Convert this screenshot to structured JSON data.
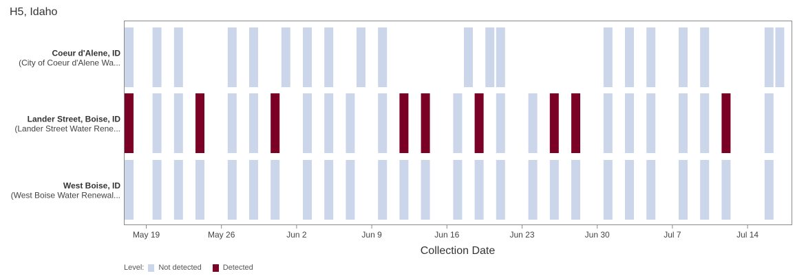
{
  "chart_data": {
    "type": "heatmap",
    "title": "H5, Idaho",
    "xlabel": "Collection Date",
    "x_ticks": [
      "May 19",
      "May 26",
      "Jun 2",
      "Jun 9",
      "Jun 16",
      "Jun 23",
      "Jun 30",
      "Jul 7",
      "Jul 14"
    ],
    "x_tick_days": [
      0,
      7,
      14,
      21,
      28,
      35,
      42,
      49,
      56
    ],
    "legend": {
      "label": "Level:",
      "items": [
        {
          "name": "Not detected",
          "color": "#cbd6ea"
        },
        {
          "name": "Detected",
          "color": "#7a0025"
        }
      ]
    },
    "sites": [
      {
        "name": "Coeur d'Alene, ID",
        "subtitle": "(City of Coeur d'Alene Wa...",
        "samples": [
          {
            "day": -2,
            "level": "Not detected"
          },
          {
            "day": 1,
            "level": "Not detected"
          },
          {
            "day": 3,
            "level": "Not detected"
          },
          {
            "day": 8,
            "level": "Not detected"
          },
          {
            "day": 10,
            "level": "Not detected"
          },
          {
            "day": 13,
            "level": "Not detected"
          },
          {
            "day": 15,
            "level": "Not detected"
          },
          {
            "day": 17,
            "level": "Not detected"
          },
          {
            "day": 20,
            "level": "Not detected"
          },
          {
            "day": 22,
            "level": "Not detected"
          },
          {
            "day": 30,
            "level": "Not detected"
          },
          {
            "day": 32,
            "level": "Not detected"
          },
          {
            "day": 33,
            "level": "Not detected"
          },
          {
            "day": 43,
            "level": "Not detected"
          },
          {
            "day": 45,
            "level": "Not detected"
          },
          {
            "day": 47,
            "level": "Not detected"
          },
          {
            "day": 50,
            "level": "Not detected"
          },
          {
            "day": 52,
            "level": "Not detected"
          },
          {
            "day": 58,
            "level": "Not detected"
          },
          {
            "day": 59,
            "level": "Not detected"
          }
        ]
      },
      {
        "name": "Lander Street, Boise, ID",
        "subtitle": "(Lander Street Water Rene...",
        "samples": [
          {
            "day": -2,
            "level": "Detected"
          },
          {
            "day": 1,
            "level": "Not detected"
          },
          {
            "day": 3,
            "level": "Not detected"
          },
          {
            "day": 5,
            "level": "Detected"
          },
          {
            "day": 8,
            "level": "Not detected"
          },
          {
            "day": 10,
            "level": "Not detected"
          },
          {
            "day": 12,
            "level": "Detected"
          },
          {
            "day": 15,
            "level": "Not detected"
          },
          {
            "day": 17,
            "level": "Not detected"
          },
          {
            "day": 19,
            "level": "Not detected"
          },
          {
            "day": 22,
            "level": "Not detected"
          },
          {
            "day": 24,
            "level": "Detected"
          },
          {
            "day": 26,
            "level": "Detected"
          },
          {
            "day": 29,
            "level": "Not detected"
          },
          {
            "day": 31,
            "level": "Detected"
          },
          {
            "day": 33,
            "level": "Not detected"
          },
          {
            "day": 36,
            "level": "Not detected"
          },
          {
            "day": 38,
            "level": "Detected"
          },
          {
            "day": 40,
            "level": "Detected"
          },
          {
            "day": 43,
            "level": "Not detected"
          },
          {
            "day": 45,
            "level": "Not detected"
          },
          {
            "day": 47,
            "level": "Not detected"
          },
          {
            "day": 50,
            "level": "Not detected"
          },
          {
            "day": 52,
            "level": "Not detected"
          },
          {
            "day": 54,
            "level": "Detected"
          },
          {
            "day": 58,
            "level": "Not detected"
          }
        ]
      },
      {
        "name": "West Boise, ID",
        "subtitle": "(West Boise Water Renewal...",
        "samples": [
          {
            "day": -2,
            "level": "Not detected"
          },
          {
            "day": 1,
            "level": "Not detected"
          },
          {
            "day": 3,
            "level": "Not detected"
          },
          {
            "day": 5,
            "level": "Not detected"
          },
          {
            "day": 8,
            "level": "Not detected"
          },
          {
            "day": 10,
            "level": "Not detected"
          },
          {
            "day": 12,
            "level": "Not detected"
          },
          {
            "day": 15,
            "level": "Not detected"
          },
          {
            "day": 17,
            "level": "Not detected"
          },
          {
            "day": 19,
            "level": "Not detected"
          },
          {
            "day": 22,
            "level": "Not detected"
          },
          {
            "day": 24,
            "level": "Not detected"
          },
          {
            "day": 26,
            "level": "Not detected"
          },
          {
            "day": 29,
            "level": "Not detected"
          },
          {
            "day": 31,
            "level": "Not detected"
          },
          {
            "day": 33,
            "level": "Not detected"
          },
          {
            "day": 36,
            "level": "Not detected"
          },
          {
            "day": 38,
            "level": "Not detected"
          },
          {
            "day": 40,
            "level": "Not detected"
          },
          {
            "day": 43,
            "level": "Not detected"
          },
          {
            "day": 45,
            "level": "Not detected"
          },
          {
            "day": 47,
            "level": "Not detected"
          },
          {
            "day": 50,
            "level": "Not detected"
          },
          {
            "day": 52,
            "level": "Not detected"
          },
          {
            "day": 54,
            "level": "Not detected"
          },
          {
            "day": 58,
            "level": "Not detected"
          }
        ]
      }
    ]
  }
}
